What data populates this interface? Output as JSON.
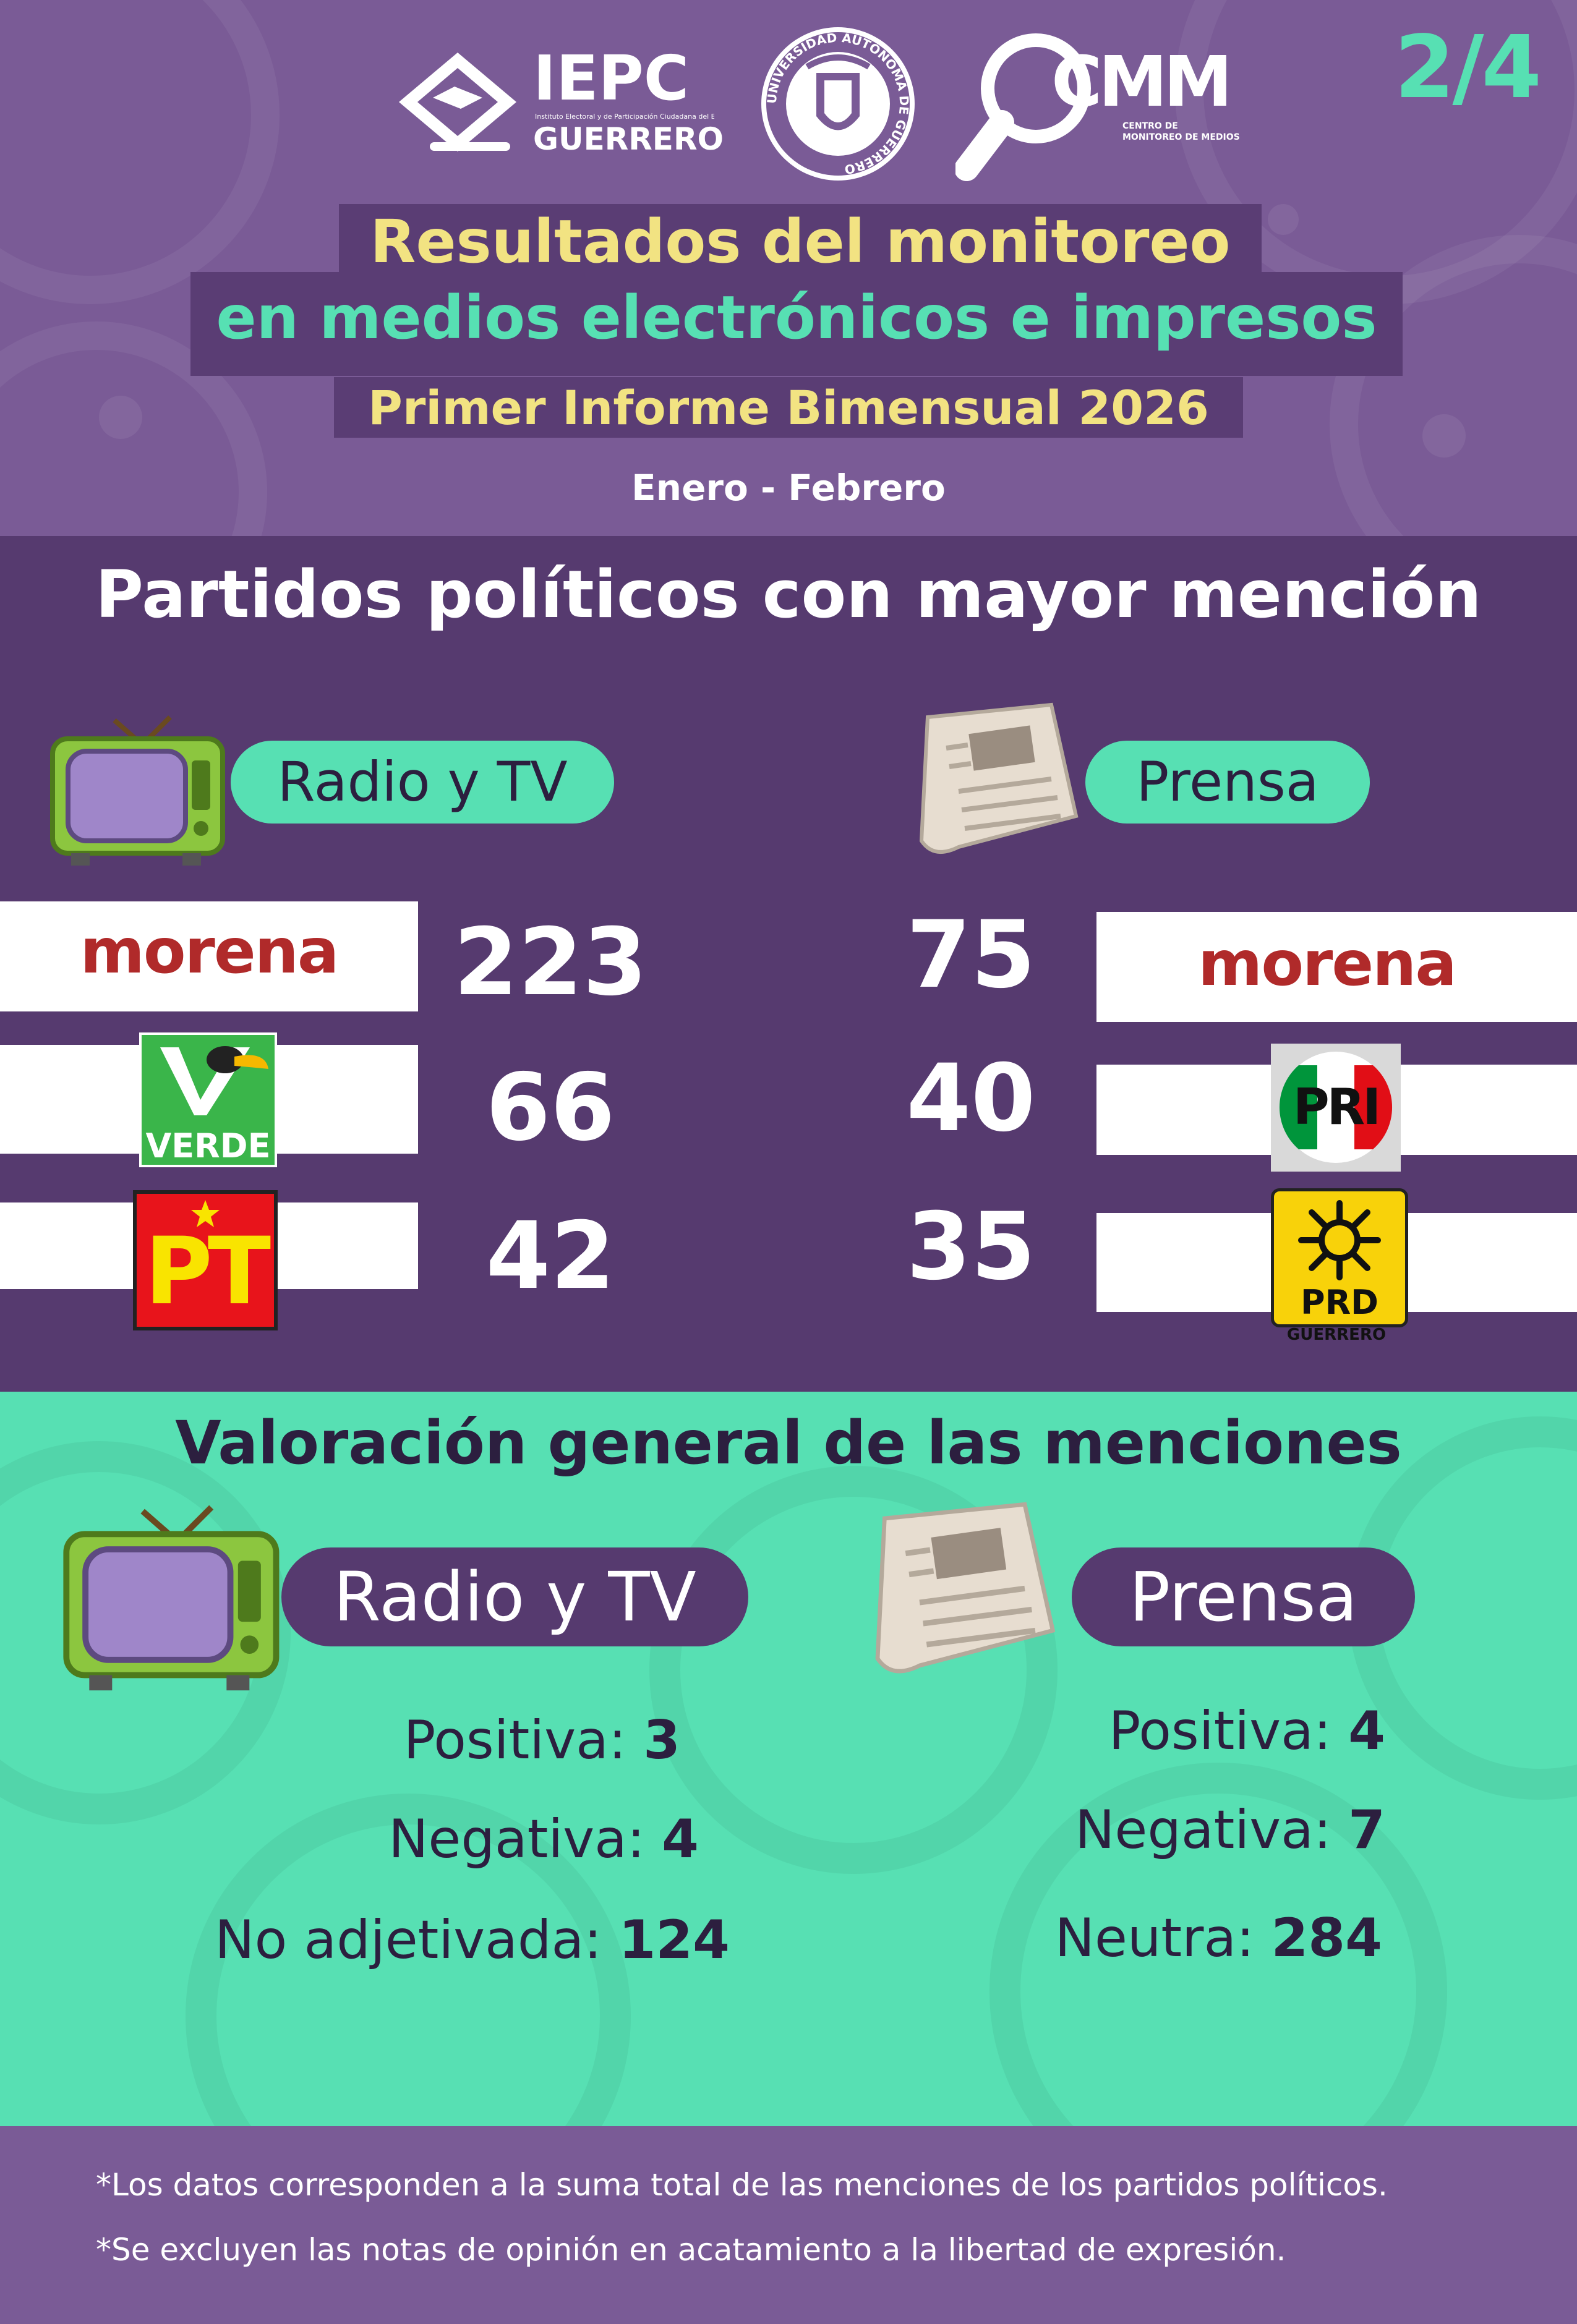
{
  "header": {
    "iepc": {
      "name": "IEPC",
      "line1": "Instituto Electoral y de Participación Ciudadana del Estado de",
      "state": "GUERRERO"
    },
    "university_seal": {
      "ring_text": "UNIVERSIDAD AUTÓNOMA DE GUERRERO"
    },
    "cmm": {
      "name": "CMM",
      "line1": "CENTRO DE",
      "line2": "MONITOREO DE MEDIOS"
    },
    "page_number": "2/4",
    "title_line1": "Resultados del monitoreo",
    "title_line2": "en medios electrónicos e impresos",
    "subtitle": "Primer Informe Bimensual 2026",
    "period": "Enero - Febrero"
  },
  "parties_section": {
    "heading": "Partidos políticos con mayor mención",
    "radio_tv": {
      "label": "Radio y TV",
      "rows": [
        {
          "party": "morena",
          "logo_text": "morena",
          "mentions": "223"
        },
        {
          "party": "verde",
          "logo_text": "VERDE",
          "mentions": "66"
        },
        {
          "party": "pt",
          "logo_text": "PT",
          "mentions": "42"
        }
      ]
    },
    "prensa": {
      "label": "Prensa",
      "rows": [
        {
          "party": "morena",
          "logo_text": "morena",
          "mentions": "75"
        },
        {
          "party": "pri",
          "logo_text": "PRI",
          "mentions": "40"
        },
        {
          "party": "prd",
          "logo_text": "PRD",
          "sub_text": "GUERRERO",
          "mentions": "35"
        }
      ]
    }
  },
  "valuation_section": {
    "heading": "Valoración general de las menciones",
    "radio_tv": {
      "label": "Radio y TV",
      "items": [
        {
          "label": "Positiva:",
          "value": "3"
        },
        {
          "label": "Negativa:",
          "value": "4"
        },
        {
          "label": "No adjetivada:",
          "value": "124"
        }
      ]
    },
    "prensa": {
      "label": "Prensa",
      "items": [
        {
          "label": "Positiva:",
          "value": "4"
        },
        {
          "label": "Negativa:",
          "value": "7"
        },
        {
          "label": "Neutra:",
          "value": "284"
        }
      ]
    }
  },
  "footer": {
    "note1": "*Los datos corresponden a la suma total de las menciones de los partidos políticos.",
    "note2": "*Se excluyen las notas de opinión en acatamiento a la libertad de expresión."
  },
  "colors": {
    "purple_light": "#7a5b96",
    "purple_dark": "#563a6f",
    "mint": "#57e0b3",
    "yellow": "#f2e382",
    "morena_red": "#b02a2a"
  }
}
